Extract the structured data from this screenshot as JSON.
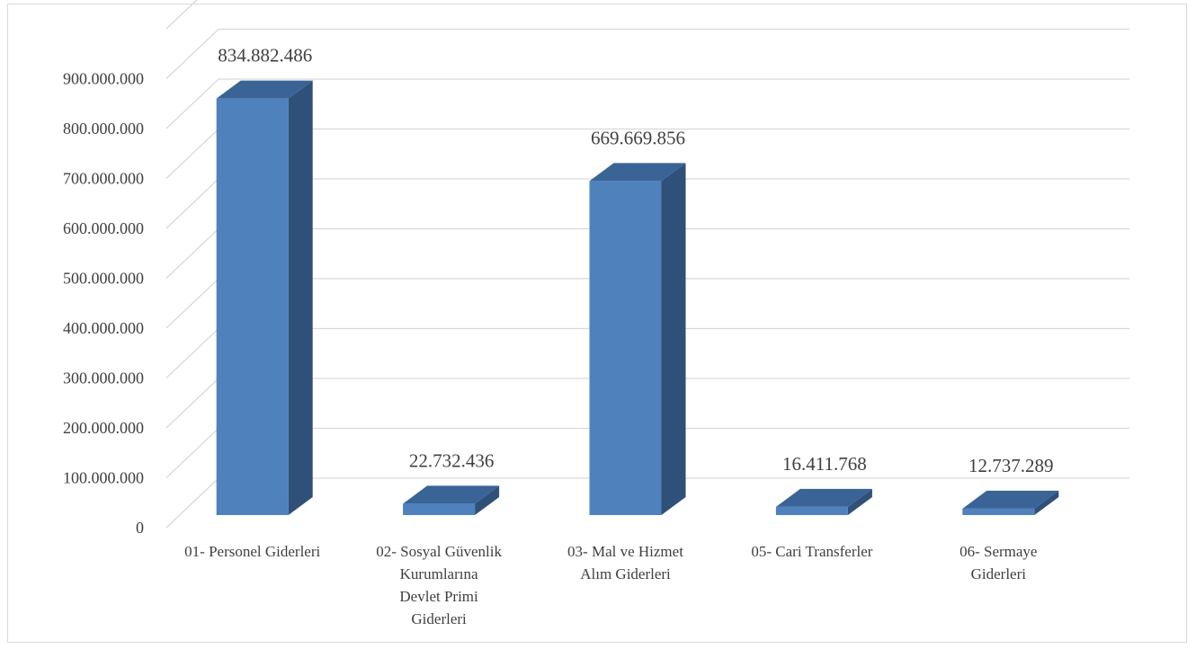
{
  "chart_data": {
    "type": "bar",
    "style": "3d-column",
    "title": "",
    "xlabel": "",
    "ylabel": "",
    "ylim": [
      0,
      1000000000
    ],
    "ytick_values": [
      0,
      100000000,
      200000000,
      300000000,
      400000000,
      500000000,
      600000000,
      700000000,
      800000000,
      900000000
    ],
    "ytick_labels": [
      "0",
      "100.000.000",
      "200.000.000",
      "300.000.000",
      "400.000.000",
      "500.000.000",
      "600.000.000",
      "700.000.000",
      "800.000.000",
      "900.000.000"
    ],
    "grid": true,
    "legend": "none",
    "categories": [
      [
        "01- Personel Giderleri"
      ],
      [
        "02- Sosyal Güvenlik",
        "Kurumlarına",
        "Devlet Primi",
        "Giderleri"
      ],
      [
        "03- Mal ve Hizmet",
        "Alım Giderleri"
      ],
      [
        "05- Cari Transferler"
      ],
      [
        "06- Sermaye",
        "Giderleri"
      ]
    ],
    "values": [
      834882486,
      22732436,
      669669856,
      16411768,
      12737289
    ],
    "data_labels": [
      "834.882.486",
      "22.732.436",
      "669.669.856",
      "16.411.768",
      "12.737.289"
    ],
    "colors": {
      "front": "#4f81bd",
      "side": "#2f5079",
      "top": "#3a6496",
      "grid": "#d9d9d9",
      "text": "#404040"
    }
  }
}
